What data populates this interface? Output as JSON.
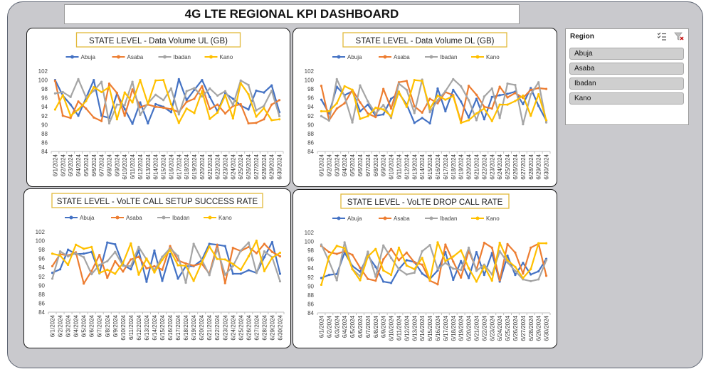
{
  "page": {
    "title": "4G LTE REGIONAL KPI DASHBOARD"
  },
  "slicer": {
    "header": "Region",
    "icons": [
      "multi-select-icon",
      "clear-filter-icon"
    ],
    "items": [
      "Abuja",
      "Asaba",
      "Ibadan",
      "Kano"
    ]
  },
  "colors": {
    "Abuja": "#4472c4",
    "Asaba": "#ed7d31",
    "Ibadan": "#a5a5a5",
    "Kano": "#ffc000",
    "title_border": "#e2b93b",
    "frame": "#c9c9cd"
  },
  "chart_data": [
    {
      "type": "line",
      "title": "STATE LEVEL - Data Volume UL (GB)",
      "legend": "top",
      "grid": false,
      "ylim": [
        84,
        102
      ],
      "yticks": [
        84,
        86,
        88,
        90,
        92,
        94,
        96,
        98,
        100,
        102
      ],
      "categories": [
        "6/1/2024",
        "6/2/2024",
        "6/3/2024",
        "6/4/2024",
        "6/5/2024",
        "6/6/2024",
        "6/7/2024",
        "6/8/2024",
        "6/9/2024",
        "6/10/2024",
        "6/11/2024",
        "6/12/2024",
        "6/13/2024",
        "6/14/2024",
        "6/15/2024",
        "6/16/2024",
        "6/17/2024",
        "6/18/2024",
        "6/19/2024",
        "6/20/2024",
        "6/21/2024",
        "6/22/2024",
        "6/23/2024",
        "6/24/2024",
        "6/25/2024",
        "6/26/2024",
        "6/27/2024",
        "6/28/2024",
        "6/29/2024",
        "6/30/2024"
      ],
      "series": [
        {
          "name": "Abuja",
          "values": [
            100,
            96.5,
            94.5,
            92,
            96,
            100,
            92,
            91.5,
            97,
            93.5,
            90.2,
            95,
            90.3,
            94.6,
            94,
            92.8,
            100.2,
            95.5,
            97.8,
            100,
            96.2,
            93,
            97,
            95.8,
            94.3,
            93.4,
            97.6,
            97.2,
            98.8,
            92.8
          ]
        },
        {
          "name": "Asaba",
          "values": [
            99.8,
            92,
            91.5,
            95.2,
            93.6,
            91.6,
            90.8,
            99.2,
            97.1,
            92,
            97.9,
            93.9,
            94.5,
            94,
            93.8,
            93.5,
            92.8,
            95.1,
            95.8,
            98.6,
            93.5,
            94.5,
            92.5,
            94.2,
            94.6,
            90.3,
            90.4,
            91.2,
            94.5,
            95.5
          ]
        },
        {
          "name": "Ibadan",
          "values": [
            97,
            97.3,
            96.2,
            100.2,
            96.1,
            97.6,
            99.6,
            90.3,
            94.5,
            94.4,
            99.6,
            92.2,
            94.8,
            96.7,
            95.5,
            98.1,
            92.3,
            97.5,
            98.2,
            96.3,
            98.1,
            96.5,
            97.5,
            94.4,
            99.9,
            98.9,
            93.2,
            94.2,
            97.6,
            91.9
          ]
        },
        {
          "name": "Kano",
          "values": [
            93.4,
            96.6,
            92,
            93.4,
            95.3,
            98.4,
            97.3,
            98.4,
            91.2,
            97.2,
            95,
            100,
            94.7,
            99.9,
            100,
            94.6,
            90.4,
            93.6,
            92.6,
            97.5,
            91.3,
            92.7,
            96.6,
            91.4,
            99.3,
            96.8,
            91.8,
            93.7,
            91,
            91.2
          ]
        }
      ]
    },
    {
      "type": "line",
      "title": "STATE LEVEL - Data Volume DL (GB)",
      "legend": "top",
      "grid": false,
      "ylim": [
        84,
        102
      ],
      "yticks": [
        84,
        86,
        88,
        90,
        92,
        94,
        96,
        98,
        100,
        102
      ],
      "categories": [
        "6/1/2024",
        "6/2/2024",
        "6/3/2024",
        "6/4/2024",
        "6/5/2024",
        "6/6/2024",
        "6/7/2024",
        "6/8/2024",
        "6/9/2024",
        "6/10/2024",
        "6/11/2024",
        "6/12/2024",
        "6/13/2024",
        "6/14/2024",
        "6/15/2024",
        "6/16/2024",
        "6/17/2024",
        "6/18/2024",
        "6/19/2024",
        "6/20/2024",
        "6/21/2024",
        "6/22/2024",
        "6/23/2024",
        "6/24/2024",
        "6/25/2024",
        "6/26/2024",
        "6/27/2024",
        "6/28/2024",
        "6/29/2024",
        "6/30/2024"
      ],
      "series": [
        {
          "name": "Abuja",
          "values": [
            95.6,
            92.5,
            98.5,
            96.6,
            97.5,
            93,
            94.5,
            92,
            92.3,
            95.8,
            97.1,
            94.5,
            90.4,
            91.5,
            90.3,
            98.1,
            93,
            97.8,
            95.2,
            91.6,
            95.8,
            91.2,
            96.2,
            96.6,
            96.9,
            97.4,
            94.6,
            98.2,
            94.2,
            90.9
          ]
        },
        {
          "name": "Asaba",
          "values": [
            98.7,
            91,
            93.6,
            94.8,
            97.8,
            95,
            92.5,
            91.7,
            98,
            93.6,
            99.5,
            99.8,
            94.1,
            92.7,
            95.8,
            94.8,
            97.3,
            96.6,
            90.6,
            98.7,
            96.7,
            94,
            93.6,
            98.5,
            96.1,
            97.1,
            96,
            97.8,
            98.2,
            98
          ]
        },
        {
          "name": "Ibadan",
          "values": [
            91.9,
            90.9,
            100.2,
            96.3,
            90.5,
            98.8,
            95.2,
            92.5,
            94.4,
            91.5,
            99.2,
            97.8,
            92.6,
            100.1,
            92.8,
            95.5,
            97.5,
            100.2,
            98.6,
            95.5,
            91,
            96.3,
            98.1,
            91.5,
            99.2,
            98.9,
            90.1,
            96.8,
            99.5,
            90.5
          ]
        },
        {
          "name": "Kano",
          "values": [
            93,
            93,
            94.8,
            98.6,
            97.8,
            91.3,
            91.9,
            93.8,
            93.4,
            91.9,
            97.4,
            94,
            100,
            99.8,
            93.6,
            96.5,
            95.6,
            96.4,
            90.4,
            91,
            92.5,
            93.6,
            90.8,
            94.5,
            94.5,
            95.3,
            96.5,
            92,
            96.8,
            91
          ]
        }
      ]
    },
    {
      "type": "line",
      "title": "STATE LEVEL - VoLTE CALL SETUP SUCCESS RATE",
      "legend": "top",
      "grid": false,
      "ylim": [
        84,
        102
      ],
      "yticks": [
        84,
        86,
        88,
        90,
        92,
        94,
        96,
        98,
        100,
        102
      ],
      "categories": [
        "6/1/2024",
        "6/2/2024",
        "6/3/2024",
        "6/4/2024",
        "6/5/2024",
        "6/6/2024",
        "6/7/2024",
        "6/8/2024",
        "6/9/2024",
        "6/10/2024",
        "6/11/2024",
        "6/12/2024",
        "6/13/2024",
        "6/14/2024",
        "6/15/2024",
        "6/16/2024",
        "6/17/2024",
        "6/18/2024",
        "6/19/2024",
        "6/20/2024",
        "6/21/2024",
        "6/22/2024",
        "6/23/2024",
        "6/24/2024",
        "6/25/2024",
        "6/26/2024",
        "6/27/2024",
        "6/28/2024",
        "6/29/2024",
        "6/30/2024"
      ],
      "series": [
        {
          "name": "Abuja",
          "values": [
            92.8,
            93.6,
            98,
            97,
            97.1,
            97.5,
            92.7,
            99.6,
            99.2,
            94.6,
            93.6,
            97.8,
            90.8,
            97.8,
            91,
            97,
            91.5,
            94.3,
            94.3,
            95.6,
            99.3,
            99.1,
            98.8,
            92.6,
            92.6,
            93.4,
            92.8,
            96.3,
            99.7,
            92.6
          ]
        },
        {
          "name": "Asaba",
          "values": [
            94.3,
            97,
            96.7,
            97.4,
            90.4,
            93.2,
            96.8,
            91.7,
            95.4,
            93.1,
            95.8,
            96.4,
            93.8,
            94.3,
            93.5,
            98.8,
            95.6,
            94.9,
            94.4,
            94.9,
            92.6,
            99.1,
            90.5,
            98.4,
            97.7,
            98.6,
            97.2,
            99.3,
            97.5,
            96.5
          ]
        },
        {
          "name": "Ibadan",
          "values": [
            91.5,
            97.6,
            96.5,
            97.2,
            96.3,
            92.5,
            94.6,
            95.4,
            97.5,
            94.4,
            94.3,
            98.6,
            95.8,
            93.4,
            96.4,
            98.3,
            96.6,
            90.6,
            99.3,
            95.8,
            92.3,
            98.2,
            92.4,
            94.3,
            97.8,
            99.6,
            92.8,
            97.6,
            96.3,
            90.9
          ]
        },
        {
          "name": "Kano",
          "values": [
            97.1,
            96.7,
            94.6,
            99.1,
            98.2,
            98.6,
            92.8,
            93.5,
            92.6,
            95,
            99.4,
            92.4,
            96,
            92.9,
            95.7,
            97.9,
            94.5,
            94.4,
            91,
            95,
            98.7,
            95.9,
            95.8,
            94.8,
            93.5,
            96.5,
            100,
            93.2,
            96.2,
            97.3
          ]
        }
      ]
    },
    {
      "type": "line",
      "title": "STATE LEVEL - VoLTE DROP CALL RATE",
      "legend": "top",
      "grid": false,
      "ylim": [
        84,
        102
      ],
      "yticks": [
        84,
        86,
        88,
        90,
        92,
        94,
        96,
        98,
        100,
        102
      ],
      "categories": [
        "6/1/2024",
        "6/2/2024",
        "6/3/2024",
        "6/4/2024",
        "6/5/2024",
        "6/6/2024",
        "6/7/2024",
        "6/8/2024",
        "6/9/2024",
        "6/10/2024",
        "6/11/2024",
        "6/12/2024",
        "6/13/2024",
        "6/14/2024",
        "6/15/2024",
        "6/16/2024",
        "6/17/2024",
        "6/18/2024",
        "6/19/2024",
        "6/20/2024",
        "6/21/2024",
        "6/22/2024",
        "6/23/2024",
        "6/24/2024",
        "6/25/2024",
        "6/26/2024",
        "6/27/2024",
        "6/28/2024",
        "6/29/2024",
        "6/30/2024"
      ],
      "series": [
        {
          "name": "Abuja",
          "values": [
            91.8,
            92.5,
            92.7,
            97.5,
            94.5,
            93.2,
            96.8,
            94.3,
            91,
            90.7,
            93.8,
            95.8,
            95.4,
            92.8,
            91.6,
            93.5,
            97.6,
            91.4,
            95.6,
            91.8,
            97.6,
            92.5,
            97.4,
            91,
            96.8,
            92.5,
            95.2,
            92.6,
            93.3,
            96.1
          ]
        },
        {
          "name": "Asaba",
          "values": [
            99,
            97.6,
            97.2,
            97.8,
            97,
            94.1,
            91.6,
            91.2,
            96,
            98.3,
            95.8,
            97.5,
            95.3,
            94.8,
            91.2,
            90.4,
            99.3,
            95.5,
            91.9,
            97.9,
            93.7,
            99.7,
            98.6,
            91.3,
            99.4,
            97.5,
            92.8,
            98.6,
            99.5,
            92.3
          ]
        },
        {
          "name": "Ibadan",
          "values": [
            99.3,
            95.5,
            91.3,
            99.8,
            93.8,
            92.2,
            97.7,
            92.1,
            99.1,
            96.3,
            93.8,
            92.6,
            93,
            97.8,
            99.2,
            93.8,
            95.2,
            93.9,
            93.6,
            98.6,
            93.4,
            94.8,
            92.6,
            97.8,
            95.3,
            93.4,
            91.5,
            91.1,
            91.5,
            95.8
          ]
        },
        {
          "name": "Kano",
          "values": [
            90.3,
            96.6,
            99,
            98.5,
            93.8,
            91.3,
            96.6,
            98.3,
            93.5,
            92.5,
            98.6,
            94.6,
            93.8,
            96.3,
            91.4,
            99.8,
            95.6,
            96.6,
            98,
            94,
            91,
            94.4,
            91.2,
            99.7,
            95.8,
            94.3,
            91.8,
            93.8,
            99.6,
            99.6
          ]
        }
      ]
    }
  ]
}
